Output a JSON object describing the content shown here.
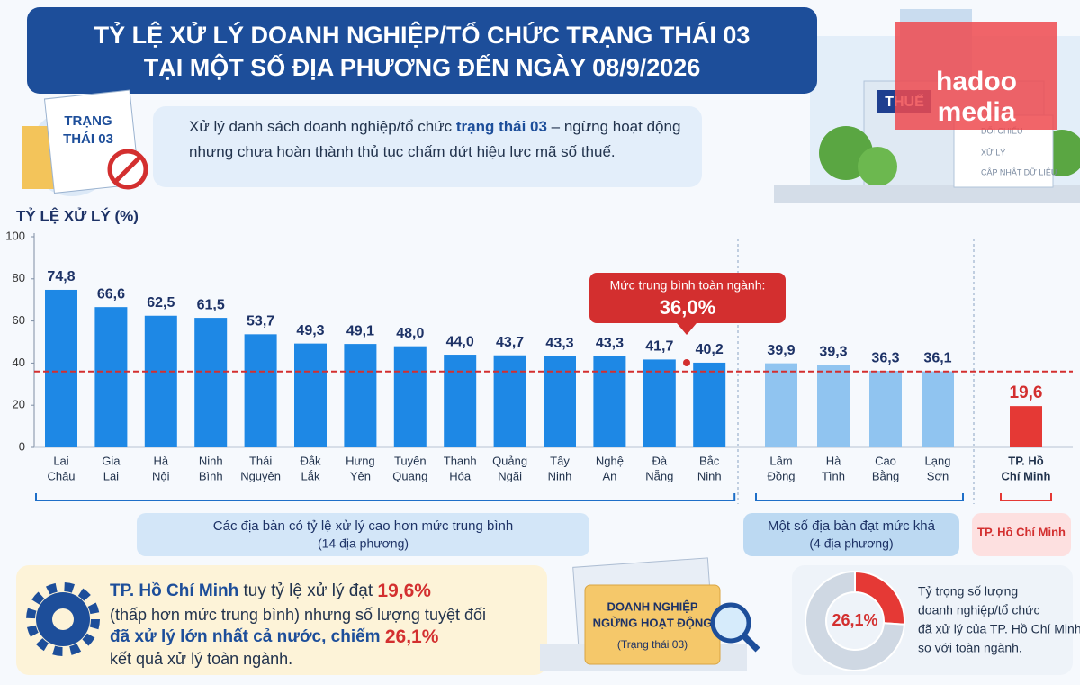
{
  "header": {
    "title": [
      "TỶ LỆ XỬ LÝ DOANH NGHIỆP/TỔ CHỨC TRẠNG THÁI 03",
      "TẠI MỘT SỐ ĐỊA PHƯƠNG ĐẾN NGÀY 08/9/2026"
    ]
  },
  "intro": {
    "lines": [
      [
        "Xử lý danh sách doanh nghiệp/tổ chức ",
        "trạng thái 03",
        " – ngừng hoạt động"
      ],
      [
        "nhưng chưa hoàn thành thủ tục chấm dứt hiệu lực mã số thuế."
      ]
    ]
  },
  "illustrations": {
    "badge": [
      "TRẠNG",
      "THÁI 03"
    ],
    "building_sign": "THUẾ",
    "checklist": [
      "ĐỐI CHIẾU",
      "XỬ LÝ",
      "CẬP NHẬT DỮ LIỆU"
    ],
    "logo": [
      "hadoo",
      "media"
    ],
    "folder": [
      "DOANH NGHIỆP",
      "NGỪNG HOẠT ĐỘNG",
      "(Trạng thái 03)"
    ]
  },
  "callout": {
    "lines": [
      [
        "TP. Hồ Chí Minh",
        " tuy tỷ lệ xử lý đạt ",
        "19,6%"
      ],
      [
        "(thấp hơn mức trung bình) nhưng số lượng tuyệt đối"
      ],
      [
        "đã xử lý lớn nhất cả nước, chiếm ",
        "26,1%"
      ],
      [
        "kết quả xử lý toàn ngành."
      ]
    ]
  },
  "chart_data": [
    {
      "type": "bar",
      "y_label": "TỶ LỆ XỬ LÝ (%)",
      "ylim": [
        0,
        100
      ],
      "yticks": [
        0,
        20,
        40,
        60,
        80,
        100
      ],
      "average": {
        "value": 36.0,
        "label": "Mức trung bình toàn ngành:",
        "value_label": "36,0%",
        "color": "#d32f2f"
      },
      "groups": [
        {
          "name": "Các địa bàn có tỷ lệ xử lý cao hơn mức trung bình",
          "note": "(14 địa phương)",
          "color": "#1e88e5",
          "categories": [
            [
              "Lai",
              "Châu"
            ],
            [
              "Gia",
              "Lai"
            ],
            [
              "Hà",
              "Nội"
            ],
            [
              "Ninh",
              "Bình"
            ],
            [
              "Thái",
              "Nguyên"
            ],
            [
              "Đắk",
              "Lắk"
            ],
            [
              "Hưng",
              "Yên"
            ],
            [
              "Tuyên",
              "Quang"
            ],
            [
              "Thanh",
              "Hóa"
            ],
            [
              "Quảng",
              "Ngãi"
            ],
            [
              "Tây",
              "Ninh"
            ],
            [
              "Nghệ",
              "An"
            ],
            [
              "Đà",
              "Nẵng"
            ],
            [
              "Bắc",
              "Ninh"
            ]
          ],
          "values": [
            74.8,
            66.6,
            62.5,
            61.5,
            53.7,
            49.3,
            49.1,
            48.0,
            44.0,
            43.7,
            43.3,
            43.3,
            41.7,
            40.2
          ],
          "value_labels": [
            "74,8",
            "66,6",
            "62,5",
            "61,5",
            "53,7",
            "49,3",
            "49,1",
            "48,0",
            "44,0",
            "43,7",
            "43,3",
            "43,3",
            "41,7",
            "40,2"
          ]
        },
        {
          "name": "Một số địa bàn đạt mức khá",
          "note": "(4 địa phương)",
          "color": "#90c4f0",
          "categories": [
            [
              "Lâm",
              "Đồng"
            ],
            [
              "Hà",
              "Tĩnh"
            ],
            [
              "Cao",
              "Bằng"
            ],
            [
              "Lạng",
              "Sơn"
            ]
          ],
          "values": [
            39.9,
            39.3,
            36.3,
            36.1
          ],
          "value_labels": [
            "39,9",
            "39,3",
            "36,3",
            "36,1"
          ]
        },
        {
          "name": "TP. Hồ Chí Minh",
          "color": "#e53935",
          "categories": [
            [
              "TP. Hồ",
              "Chí Minh"
            ]
          ],
          "values": [
            19.6
          ],
          "value_labels": [
            "19,6"
          ]
        }
      ]
    },
    {
      "type": "pie",
      "values": [
        26.1,
        73.9
      ],
      "value_labels": [
        "26,1%",
        null
      ],
      "colors": [
        "#e53935",
        "#cfd8e3"
      ],
      "caption": [
        "Tỷ trọng số lượng",
        "doanh nghiệp/tổ chức",
        "đã xử lý của TP. Hồ Chí Minh",
        "so với toàn ngành."
      ]
    }
  ]
}
